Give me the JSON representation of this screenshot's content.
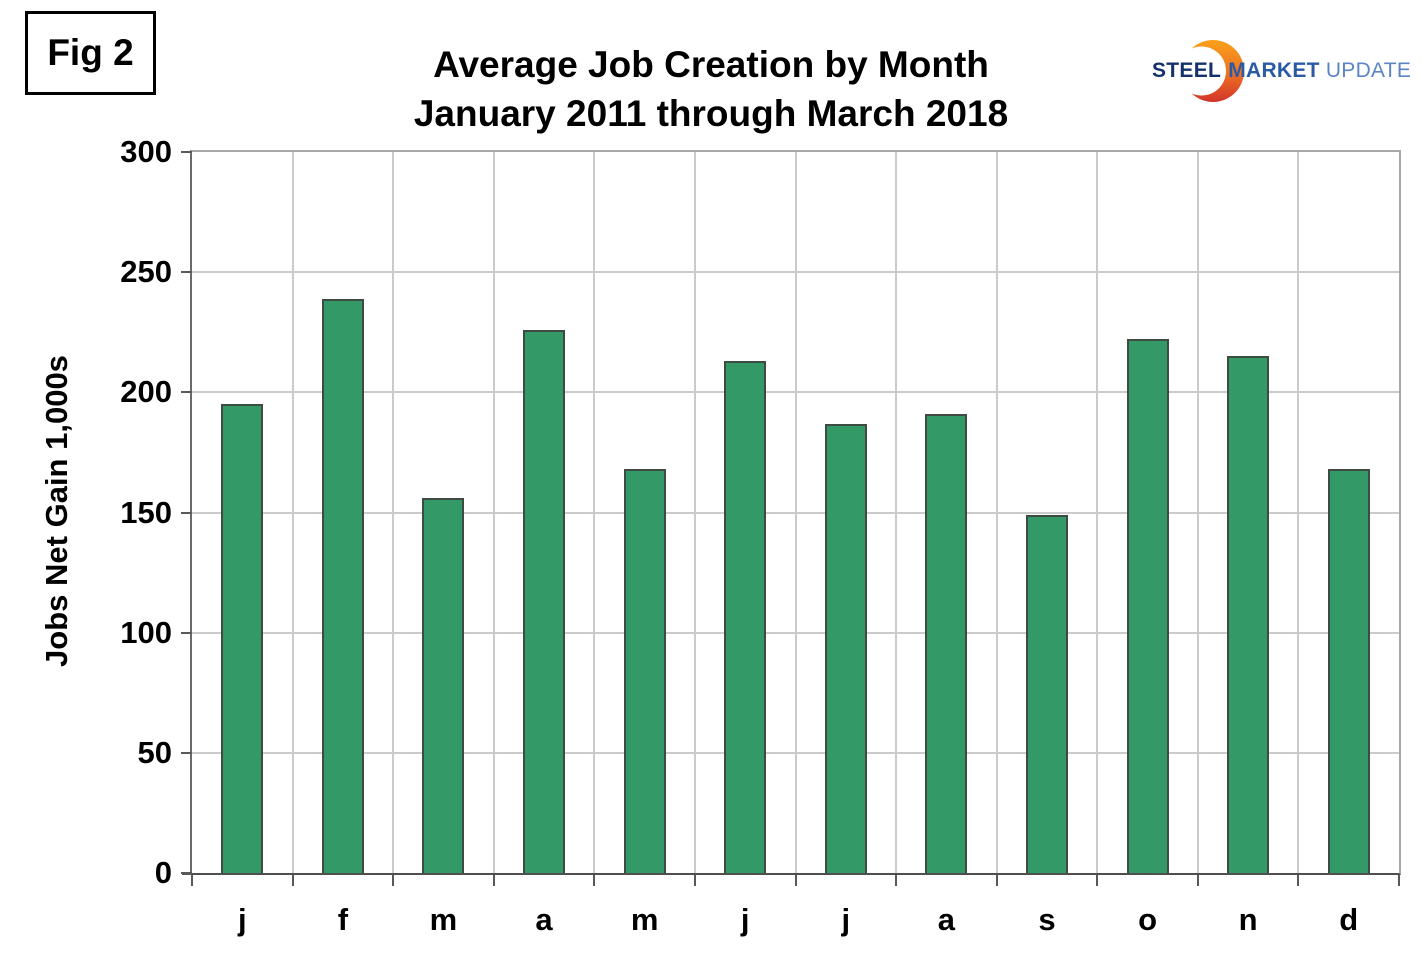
{
  "figure_label": "Fig 2",
  "header": {
    "title_line1": "Average Job Creation by Month",
    "title_line2": "January 2011 through March 2018"
  },
  "logo": {
    "word1": "STEEL",
    "word2": "MARKET",
    "word3": "UPDATE",
    "word1_color": "#14316b",
    "word2_color": "#2b5aa5",
    "word3_color": "#5b85c4",
    "crescent_top_color": "#f9a01b",
    "crescent_mid_color": "#ef7622",
    "crescent_bottom_color": "#d2342b"
  },
  "chart_data": {
    "type": "bar",
    "categories": [
      "j",
      "f",
      "m",
      "a",
      "m",
      "j",
      "j",
      "a",
      "s",
      "o",
      "n",
      "d"
    ],
    "values": [
      195,
      239,
      156,
      226,
      168,
      213,
      187,
      191,
      149,
      222,
      215,
      168
    ],
    "title": "Average Job Creation by Month",
    "subtitle": "January 2011 through March 2018",
    "xlabel": "",
    "ylabel": "Jobs Net Gain 1,000s",
    "ylim": [
      0,
      300
    ],
    "yticks": [
      0,
      50,
      100,
      150,
      200,
      250,
      300
    ],
    "grid": true,
    "legend": false,
    "bar_color": "#339966",
    "bar_border_color": "#3f4a42",
    "gridline_color": "#cbcbcb",
    "axis_color": "#595959"
  }
}
